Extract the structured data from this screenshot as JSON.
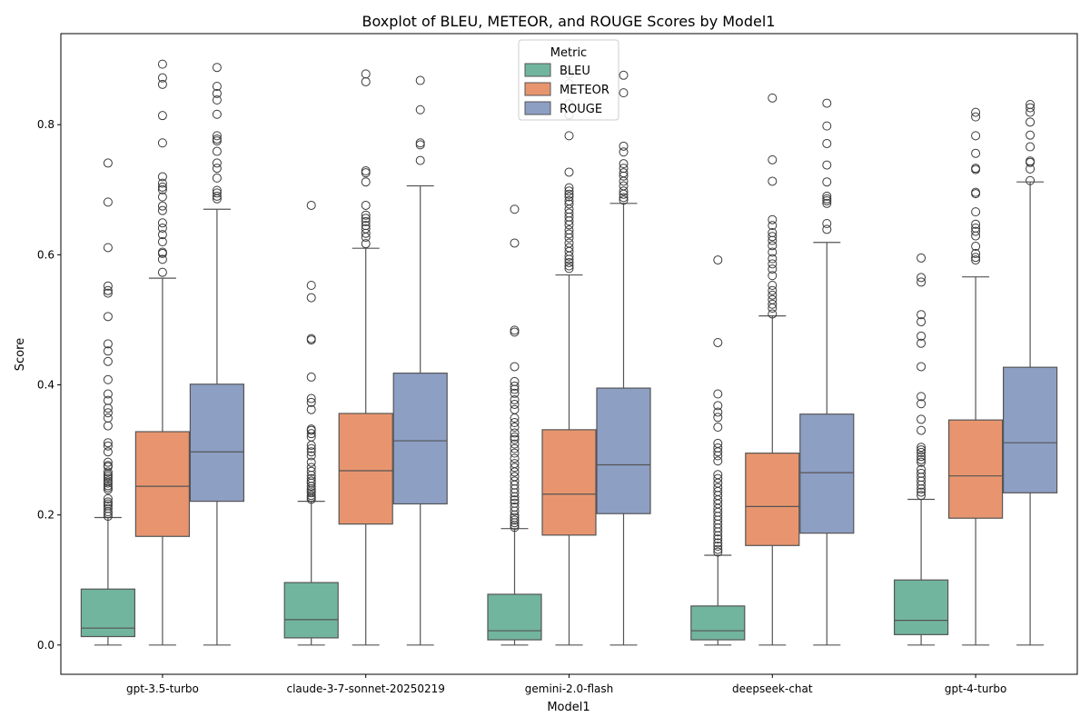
{
  "chart_data": {
    "type": "boxplot",
    "title": "Boxplot of BLEU, METEOR, and ROUGE Scores by Model1",
    "xlabel": "Model1",
    "ylabel": "Score",
    "ylim": [
      -0.045,
      0.94
    ],
    "yticks": [
      "0.0",
      "0.2",
      "0.4",
      "0.6",
      "0.8"
    ],
    "legend": {
      "title": "Metric",
      "placement": "top-center"
    },
    "categories": [
      "gpt-3.5-turbo",
      "claude-3-7-sonnet-20250219",
      "gemini-2.0-flash",
      "deepseek-chat",
      "gpt-4-turbo"
    ],
    "series": [
      {
        "name": "BLEU",
        "color": "#72b59f",
        "boxes": [
          {
            "whislo": 0.0,
            "q1": 0.013,
            "med": 0.026,
            "q3": 0.086,
            "whishi": 0.196,
            "fliers": [
              0.741,
              0.681,
              0.611,
              0.552,
              0.545,
              0.541,
              0.505,
              0.463,
              0.452,
              0.436,
              0.408,
              0.386,
              0.376,
              0.364,
              0.357,
              0.349,
              0.337,
              0.311,
              0.306,
              0.297,
              0.281,
              0.276,
              0.274,
              0.266,
              0.262,
              0.259,
              0.256,
              0.252,
              0.249,
              0.245,
              0.242,
              0.239,
              0.225,
              0.22,
              0.217,
              0.214,
              0.21,
              0.205,
              0.202,
              0.198
            ]
          },
          {
            "whislo": 0.0,
            "q1": 0.011,
            "med": 0.039,
            "q3": 0.096,
            "whishi": 0.221,
            "fliers": [
              0.676,
              0.553,
              0.534,
              0.471,
              0.469,
              0.412,
              0.379,
              0.373,
              0.362,
              0.332,
              0.33,
              0.325,
              0.32,
              0.307,
              0.302,
              0.297,
              0.291,
              0.281,
              0.273,
              0.267,
              0.261,
              0.256,
              0.252,
              0.249,
              0.244,
              0.24,
              0.237,
              0.234,
              0.23,
              0.227,
              0.224
            ]
          },
          {
            "whislo": 0.0,
            "q1": 0.008,
            "med": 0.022,
            "q3": 0.078,
            "whishi": 0.179,
            "fliers": [
              0.67,
              0.618,
              0.484,
              0.481,
              0.428,
              0.405,
              0.398,
              0.393,
              0.387,
              0.377,
              0.37,
              0.362,
              0.349,
              0.342,
              0.335,
              0.326,
              0.32,
              0.316,
              0.309,
              0.302,
              0.295,
              0.287,
              0.279,
              0.273,
              0.266,
              0.259,
              0.252,
              0.246,
              0.24,
              0.234,
              0.228,
              0.223,
              0.218,
              0.212,
              0.206,
              0.2,
              0.196,
              0.192,
              0.188,
              0.184,
              0.181
            ]
          },
          {
            "whislo": 0.0,
            "q1": 0.008,
            "med": 0.022,
            "q3": 0.06,
            "whishi": 0.138,
            "fliers": [
              0.592,
              0.465,
              0.386,
              0.368,
              0.358,
              0.35,
              0.335,
              0.31,
              0.303,
              0.297,
              0.291,
              0.283,
              0.262,
              0.256,
              0.249,
              0.242,
              0.236,
              0.23,
              0.223,
              0.217,
              0.21,
              0.204,
              0.198,
              0.192,
              0.186,
              0.18,
              0.174,
              0.168,
              0.163,
              0.157,
              0.152,
              0.147,
              0.143
            ]
          },
          {
            "whislo": 0.0,
            "q1": 0.016,
            "med": 0.038,
            "q3": 0.1,
            "whishi": 0.224,
            "fliers": [
              0.595,
              0.565,
              0.558,
              0.508,
              0.497,
              0.475,
              0.464,
              0.428,
              0.382,
              0.371,
              0.347,
              0.33,
              0.304,
              0.3,
              0.296,
              0.29,
              0.285,
              0.281,
              0.27,
              0.264,
              0.258,
              0.252,
              0.246,
              0.24,
              0.235,
              0.23
            ]
          }
        ]
      },
      {
        "name": "METEOR",
        "color": "#e8956f",
        "boxes": [
          {
            "whislo": 0.0,
            "q1": 0.167,
            "med": 0.244,
            "q3": 0.328,
            "whishi": 0.564,
            "fliers": [
              0.893,
              0.872,
              0.862,
              0.814,
              0.772,
              0.72,
              0.71,
              0.704,
              0.7,
              0.689,
              0.675,
              0.668,
              0.649,
              0.641,
              0.631,
              0.62,
              0.604,
              0.602,
              0.593,
              0.573
            ]
          },
          {
            "whislo": 0.0,
            "q1": 0.186,
            "med": 0.268,
            "q3": 0.356,
            "whishi": 0.61,
            "fliers": [
              0.878,
              0.866,
              0.729,
              0.726,
              0.712,
              0.676,
              0.661,
              0.656,
              0.651,
              0.645,
              0.64,
              0.633,
              0.627,
              0.617
            ]
          },
          {
            "whislo": 0.0,
            "q1": 0.169,
            "med": 0.232,
            "q3": 0.331,
            "whishi": 0.569,
            "fliers": [
              0.878,
              0.863,
              0.832,
              0.815,
              0.783,
              0.727,
              0.703,
              0.698,
              0.693,
              0.689,
              0.683,
              0.678,
              0.67,
              0.664,
              0.658,
              0.652,
              0.646,
              0.638,
              0.632,
              0.626,
              0.618,
              0.611,
              0.605,
              0.598,
              0.593,
              0.588,
              0.583,
              0.579
            ]
          },
          {
            "whislo": 0.0,
            "q1": 0.153,
            "med": 0.213,
            "q3": 0.295,
            "whishi": 0.506,
            "fliers": [
              0.841,
              0.746,
              0.713,
              0.654,
              0.645,
              0.634,
              0.628,
              0.622,
              0.614,
              0.604,
              0.594,
              0.586,
              0.578,
              0.568,
              0.553,
              0.545,
              0.538,
              0.531,
              0.524,
              0.518,
              0.509
            ]
          },
          {
            "whislo": 0.0,
            "q1": 0.195,
            "med": 0.26,
            "q3": 0.346,
            "whishi": 0.566,
            "fliers": [
              0.819,
              0.812,
              0.783,
              0.756,
              0.733,
              0.731,
              0.696,
              0.694,
              0.666,
              0.647,
              0.641,
              0.636,
              0.629,
              0.613,
              0.602,
              0.596,
              0.592
            ]
          }
        ]
      },
      {
        "name": "ROUGE",
        "color": "#8e9fc4",
        "boxes": [
          {
            "whislo": 0.0,
            "q1": 0.221,
            "med": 0.297,
            "q3": 0.401,
            "whishi": 0.67,
            "fliers": [
              0.888,
              0.859,
              0.848,
              0.838,
              0.816,
              0.783,
              0.778,
              0.775,
              0.759,
              0.741,
              0.733,
              0.718,
              0.699,
              0.695,
              0.69,
              0.686
            ]
          },
          {
            "whislo": 0.0,
            "q1": 0.217,
            "med": 0.314,
            "q3": 0.418,
            "whishi": 0.706,
            "fliers": [
              0.868,
              0.823,
              0.772,
              0.769,
              0.745
            ]
          },
          {
            "whislo": 0.0,
            "q1": 0.202,
            "med": 0.277,
            "q3": 0.395,
            "whishi": 0.679,
            "fliers": [
              0.876,
              0.849,
              0.767,
              0.758,
              0.74,
              0.733,
              0.726,
              0.721,
              0.713,
              0.706,
              0.698,
              0.693,
              0.688,
              0.684
            ]
          },
          {
            "whislo": 0.0,
            "q1": 0.172,
            "med": 0.265,
            "q3": 0.355,
            "whishi": 0.619,
            "fliers": [
              0.833,
              0.798,
              0.771,
              0.738,
              0.712,
              0.69,
              0.686,
              0.683,
              0.679,
              0.648,
              0.639
            ]
          },
          {
            "whislo": 0.0,
            "q1": 0.234,
            "med": 0.311,
            "q3": 0.427,
            "whishi": 0.712,
            "fliers": [
              0.831,
              0.826,
              0.819,
              0.804,
              0.784,
              0.766,
              0.744,
              0.742,
              0.732,
              0.714
            ]
          }
        ]
      }
    ]
  }
}
